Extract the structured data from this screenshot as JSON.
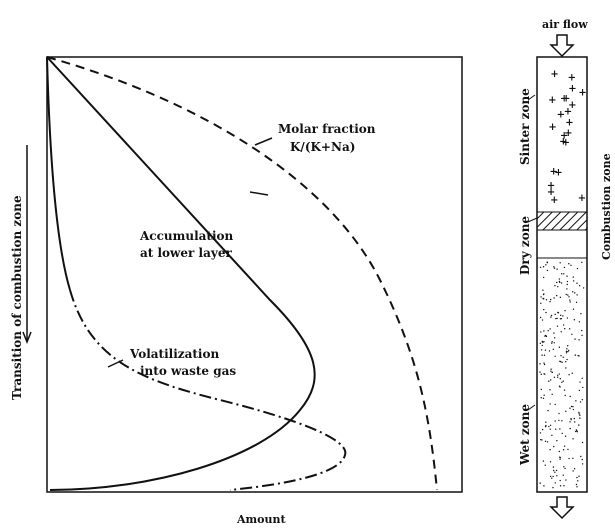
{
  "labels": {
    "molar_fraction": [
      "Molar fraction",
      "K/(K+Na)"
    ],
    "accumulation": [
      "Accumulation",
      "at lower layer"
    ],
    "volatilization": [
      "Volatilization",
      "into waste gas"
    ],
    "y_axis": "Transition of combustion zone",
    "x_axis": "Amount"
  },
  "bed": {
    "air_flow": "air flow",
    "sinter_zone": "Sinter zone",
    "combustion_zone": "Combustion zone",
    "dry_zone": "Dry zone",
    "wet_zone": "Wet zone"
  }
}
